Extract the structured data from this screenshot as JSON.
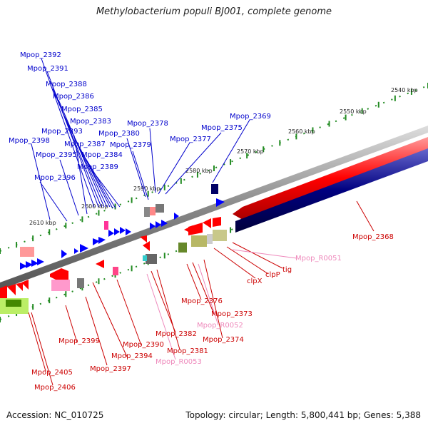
{
  "title": "Methylobacterium populi BJ001, complete genome",
  "footer": {
    "accession": "Accession: NC_010725",
    "stats": "Topology: circular; Length: 5,800,441 bp; Genes: 5,388"
  },
  "colors": {
    "forward_gene": "#ff0000",
    "reverse_gene": "#000080",
    "cds_arrow": "#0000ff",
    "gene_label": "#0000cc",
    "red_label": "#cc0000",
    "rna_label": "#ee88bb",
    "backbone": "#888888",
    "tick": "#228b22"
  },
  "scale_labels": [
    "2540 kbp",
    "2550 kbp",
    "2560 kbp",
    "2570 kbp",
    "2580 kbp",
    "2590 kbp",
    "2600 kbp",
    "2610 kbp"
  ],
  "blue_labels": [
    "Mpop_2392",
    "Mpop_2391",
    "Mpop_2388",
    "Mpop_2386",
    "Mpop_2385",
    "Mpop_2383",
    "Mpop_2393",
    "Mpop_2387",
    "Mpop_2384",
    "Mpop_2389",
    "Mpop_2398",
    "Mpop_2395",
    "Mpop_2396",
    "Mpop_2378",
    "Mpop_2380",
    "Mpop_2379",
    "Mpop_2377",
    "Mpop_2375",
    "Mpop_2369"
  ],
  "red_labels": [
    "Mpop_2368",
    "tig",
    "clpP",
    "clpX",
    "Mpop_2376",
    "Mpop_2373",
    "Mpop_2374",
    "Mpop_2382",
    "Mpop_2381",
    "Mpop_2390",
    "Mpop_2394",
    "Mpop_2399",
    "Mpop_2397",
    "Mpop_2405",
    "Mpop_2406"
  ],
  "rna_labels": [
    "Mpop_R0051",
    "Mpop_R0052",
    "Mpop_R0053"
  ]
}
